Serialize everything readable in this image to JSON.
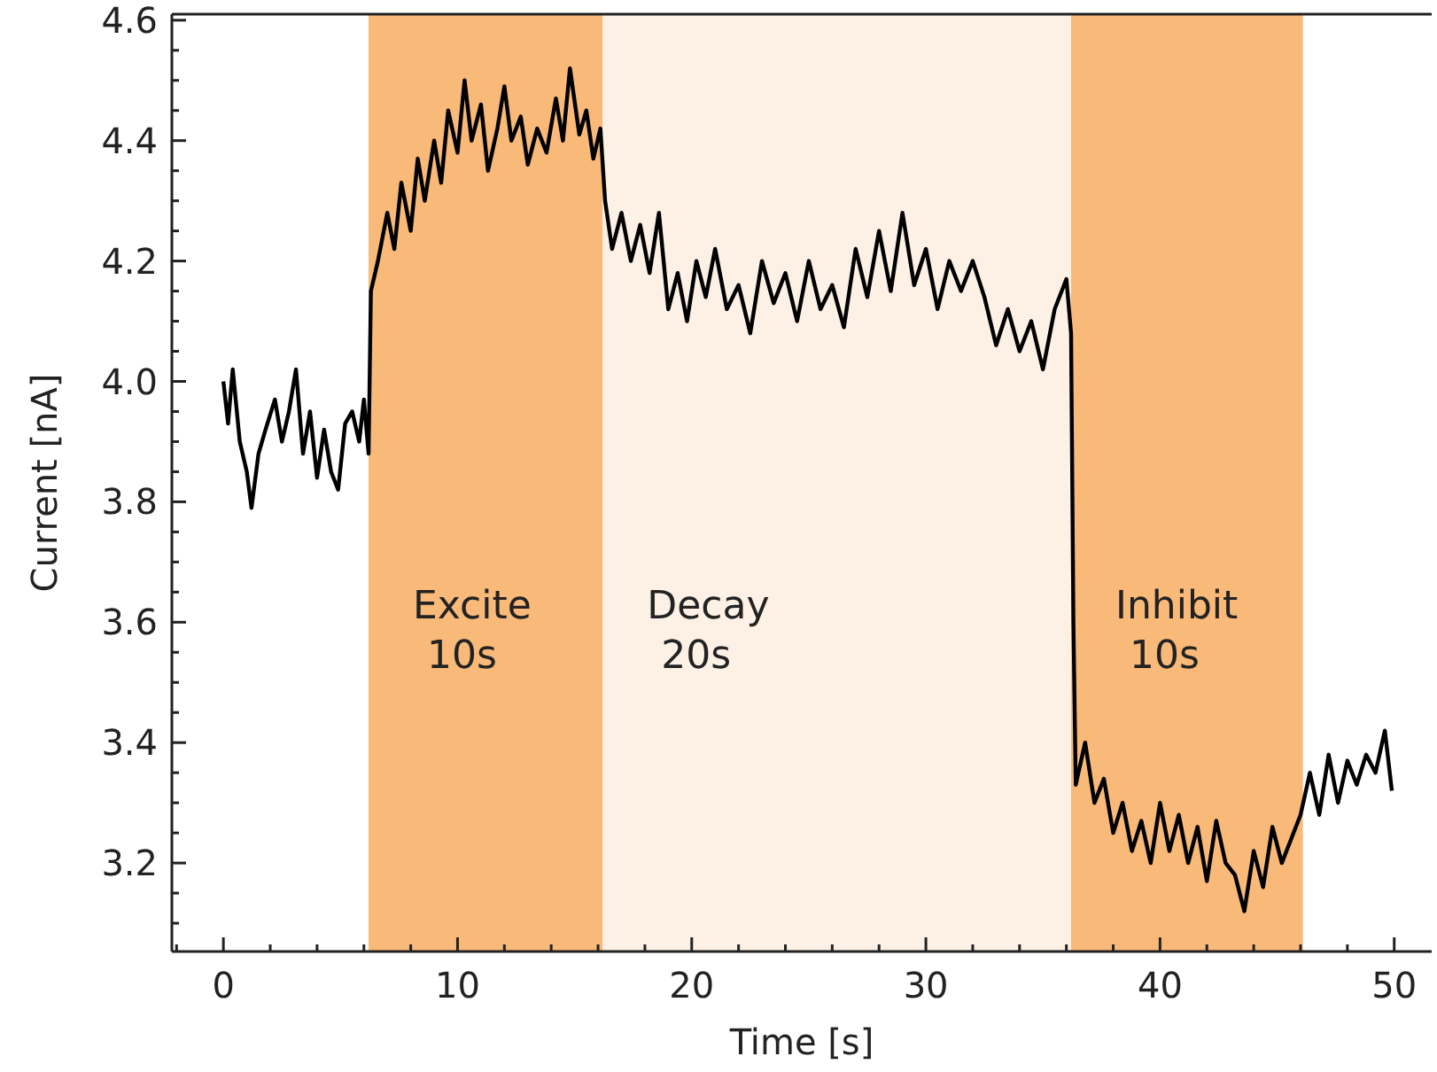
{
  "chart_data": {
    "type": "line",
    "xlabel": "Time [s]",
    "ylabel": "Current [nA]",
    "xlim": [
      -2.2,
      51.6
    ],
    "ylim": [
      3.053,
      4.61
    ],
    "xticks": [
      {
        "value": -2,
        "label": null
      },
      0,
      {
        "value": 2,
        "label": null
      },
      {
        "value": 4,
        "label": null
      },
      {
        "value": 6,
        "label": null
      },
      {
        "value": 8,
        "label": null
      },
      10,
      {
        "value": 12,
        "label": null
      },
      {
        "value": 14,
        "label": null
      },
      {
        "value": 16,
        "label": null
      },
      {
        "value": 18,
        "label": null
      },
      20,
      {
        "value": 22,
        "label": null
      },
      {
        "value": 24,
        "label": null
      },
      {
        "value": 26,
        "label": null
      },
      {
        "value": 28,
        "label": null
      },
      30,
      {
        "value": 32,
        "label": null
      },
      {
        "value": 34,
        "label": null
      },
      {
        "value": 36,
        "label": null
      },
      {
        "value": 38,
        "label": null
      },
      40,
      {
        "value": 42,
        "label": null
      },
      {
        "value": 44,
        "label": null
      },
      {
        "value": 46,
        "label": null
      },
      {
        "value": 48,
        "label": null
      },
      50
    ],
    "yticks": [
      {
        "value": 3.1,
        "label": null
      },
      {
        "value": 3.15,
        "label": null
      },
      {
        "value": 3.2,
        "label": "3.2"
      },
      {
        "value": 3.25,
        "label": null
      },
      {
        "value": 3.3,
        "label": null
      },
      {
        "value": 3.35,
        "label": null
      },
      {
        "value": 3.4,
        "label": "3.4"
      },
      {
        "value": 3.45,
        "label": null
      },
      {
        "value": 3.5,
        "label": null
      },
      {
        "value": 3.55,
        "label": null
      },
      {
        "value": 3.6,
        "label": "3.6"
      },
      {
        "value": 3.65,
        "label": null
      },
      {
        "value": 3.7,
        "label": null
      },
      {
        "value": 3.75,
        "label": null
      },
      {
        "value": 3.8,
        "label": "3.8"
      },
      {
        "value": 3.85,
        "label": null
      },
      {
        "value": 3.9,
        "label": null
      },
      {
        "value": 3.95,
        "label": null
      },
      {
        "value": 4.0,
        "label": "4.0"
      },
      {
        "value": 4.05,
        "label": null
      },
      {
        "value": 4.1,
        "label": null
      },
      {
        "value": 4.15,
        "label": null
      },
      {
        "value": 4.2,
        "label": "4.2"
      },
      {
        "value": 4.25,
        "label": null
      },
      {
        "value": 4.3,
        "label": null
      },
      {
        "value": 4.35,
        "label": null
      },
      {
        "value": 4.4,
        "label": "4.4"
      },
      {
        "value": 4.45,
        "label": null
      },
      {
        "value": 4.5,
        "label": null
      },
      {
        "value": 4.55,
        "label": null
      },
      {
        "value": 4.6,
        "label": "4.6"
      }
    ],
    "grid": false,
    "line_style": "solid",
    "bands": [
      {
        "axis": "x",
        "from": 6.2,
        "to": 16.2,
        "label": "Excite\n10s",
        "color": "#f9b978"
      },
      {
        "axis": "x",
        "from": 16.2,
        "to": 36.2,
        "label": "Decay\n20s",
        "color": "#fdf1e6"
      },
      {
        "axis": "x",
        "from": 36.2,
        "to": 46.1,
        "label": "Inhibit\n10s",
        "color": "#f9b978"
      }
    ],
    "series": [
      {
        "color": "#000000",
        "x": [
          0,
          0.2,
          0.4,
          0.7,
          1.0,
          1.2,
          1.5,
          1.8,
          2.2,
          2.5,
          2.8,
          3.1,
          3.4,
          3.7,
          4.0,
          4.3,
          4.6,
          4.9,
          5.2,
          5.5,
          5.8,
          6.0,
          6.2,
          6.3,
          6.6,
          7.0,
          7.3,
          7.6,
          8.0,
          8.3,
          8.6,
          9.0,
          9.3,
          9.6,
          10.0,
          10.3,
          10.6,
          11.0,
          11.3,
          11.7,
          12.0,
          12.3,
          12.7,
          13.0,
          13.4,
          13.8,
          14.2,
          14.5,
          14.8,
          15.2,
          15.5,
          15.8,
          16.1,
          16.3,
          16.6,
          17.0,
          17.4,
          17.8,
          18.2,
          18.6,
          19.0,
          19.4,
          19.8,
          20.2,
          20.6,
          21.0,
          21.5,
          22.0,
          22.5,
          23.0,
          23.5,
          24.0,
          24.5,
          25.0,
          25.5,
          26.0,
          26.5,
          27.0,
          27.5,
          28.0,
          28.5,
          29.0,
          29.5,
          30.0,
          30.5,
          31.0,
          31.5,
          32.0,
          32.5,
          33.0,
          33.5,
          34.0,
          34.5,
          35.0,
          35.5,
          36.0,
          36.2,
          36.3,
          36.4,
          36.8,
          37.2,
          37.6,
          38.0,
          38.4,
          38.8,
          39.2,
          39.6,
          40.0,
          40.4,
          40.8,
          41.2,
          41.6,
          42.0,
          42.4,
          42.8,
          43.2,
          43.6,
          44.0,
          44.4,
          44.8,
          45.2,
          45.6,
          46.0,
          46.4,
          46.8,
          47.2,
          47.6,
          48.0,
          48.4,
          48.8,
          49.2,
          49.6,
          49.9
        ],
        "values": [
          4.0,
          3.93,
          4.02,
          3.9,
          3.85,
          3.79,
          3.88,
          3.92,
          3.97,
          3.9,
          3.95,
          4.02,
          3.88,
          3.95,
          3.84,
          3.92,
          3.85,
          3.82,
          3.93,
          3.95,
          3.9,
          3.97,
          3.88,
          4.15,
          4.2,
          4.28,
          4.22,
          4.33,
          4.25,
          4.37,
          4.3,
          4.4,
          4.33,
          4.45,
          4.38,
          4.5,
          4.4,
          4.46,
          4.35,
          4.42,
          4.49,
          4.4,
          4.44,
          4.36,
          4.42,
          4.38,
          4.47,
          4.4,
          4.52,
          4.41,
          4.45,
          4.37,
          4.42,
          4.3,
          4.22,
          4.28,
          4.2,
          4.26,
          4.18,
          4.28,
          4.12,
          4.18,
          4.1,
          4.2,
          4.14,
          4.22,
          4.12,
          4.16,
          4.08,
          4.2,
          4.13,
          4.18,
          4.1,
          4.2,
          4.12,
          4.16,
          4.09,
          4.22,
          4.14,
          4.25,
          4.15,
          4.28,
          4.16,
          4.22,
          4.12,
          4.2,
          4.15,
          4.2,
          4.14,
          4.06,
          4.12,
          4.05,
          4.1,
          4.02,
          4.12,
          4.17,
          4.08,
          3.6,
          3.33,
          3.4,
          3.3,
          3.34,
          3.25,
          3.3,
          3.22,
          3.27,
          3.2,
          3.3,
          3.22,
          3.28,
          3.2,
          3.26,
          3.17,
          3.27,
          3.2,
          3.18,
          3.12,
          3.22,
          3.16,
          3.26,
          3.2,
          3.24,
          3.28,
          3.35,
          3.28,
          3.38,
          3.3,
          3.37,
          3.33,
          3.38,
          3.35,
          3.42,
          3.32
        ]
      }
    ]
  }
}
